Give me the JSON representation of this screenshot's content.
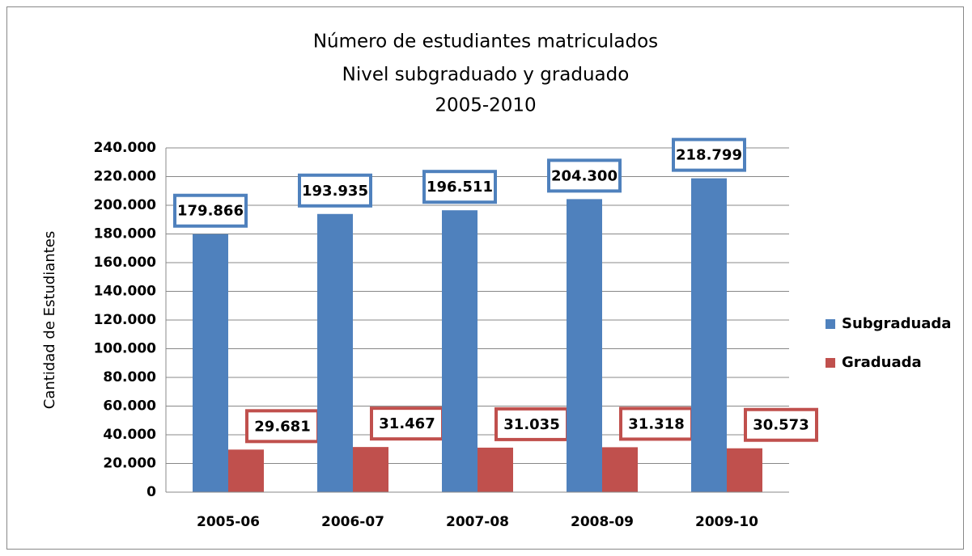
{
  "chart_data": {
    "type": "bar",
    "title": [
      "Número de estudiantes matriculados",
      "Nivel subgraduado  y graduado",
      "2005-2010"
    ],
    "y_label": "Cantidad de Estudiantes",
    "categories": [
      "2005-06",
      "2006-07",
      "2007-08",
      "2008-09",
      "2009-10"
    ],
    "series": [
      {
        "name": "Subgraduada",
        "color": "#4f81bd",
        "label_border": "#4f81bd",
        "values": [
          179866,
          193935,
          196511,
          204300,
          218799
        ],
        "value_labels": [
          "179.866",
          "193.935",
          "196.511",
          "204.300",
          "218.799"
        ]
      },
      {
        "name": "Graduada",
        "color": "#c0504d",
        "label_border": "#c0504d",
        "values": [
          29681,
          31467,
          31035,
          31318,
          30573
        ],
        "value_labels": [
          "29.681",
          "31.467",
          "31.035",
          "31.318",
          "30.573"
        ]
      }
    ],
    "ylim": [
      0,
      240000
    ],
    "yticks": [
      0,
      {
        "value": 20000,
        "label": "20.000"
      },
      {
        "value": 40000,
        "label": "40.000"
      },
      {
        "value": 60000,
        "label": "60.000"
      },
      {
        "value": 80000,
        "label": "80.000"
      },
      {
        "value": 100000,
        "label": "100.000"
      },
      {
        "value": 120000,
        "label": "120.000"
      },
      {
        "value": 140000,
        "label": "140.000"
      },
      {
        "value": 160000,
        "label": "160.000"
      },
      {
        "value": 180000,
        "label": "180.000"
      },
      {
        "value": 200000,
        "label": "200.000"
      },
      {
        "value": 220000,
        "label": "220.000"
      },
      {
        "value": 240000,
        "label": "240.000"
      }
    ],
    "grid": true,
    "legend": "right"
  }
}
